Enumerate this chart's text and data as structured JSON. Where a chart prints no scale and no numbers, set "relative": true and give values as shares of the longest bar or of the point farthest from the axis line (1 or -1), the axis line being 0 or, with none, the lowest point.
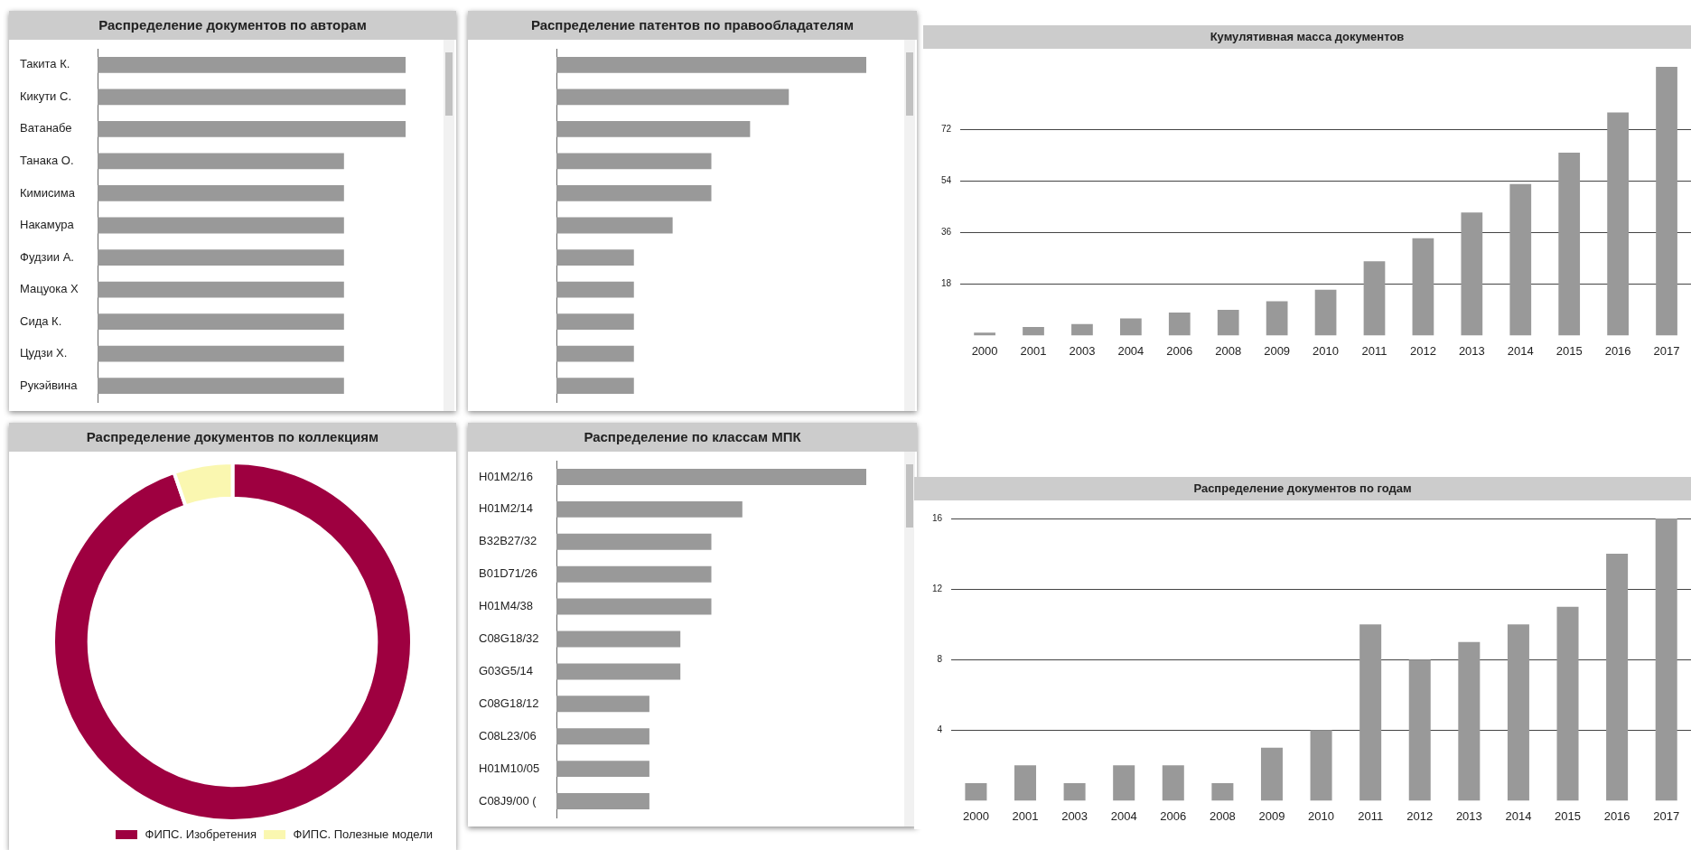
{
  "chart_data": [
    {
      "type": "bar",
      "title": "Распределение документов по авторам",
      "orientation": "horizontal",
      "relative": true,
      "color": "#999999",
      "categories": [
        "Такита К.",
        "Кикути С.",
        "Ватанабе",
        "Танака О.",
        "Кимисима",
        "Накамура",
        "Фудзии А.",
        "Мацуока Х",
        "Сида К.",
        "Цудзи Х.",
        "Рукэйвина"
      ],
      "values": [
        1,
        1,
        1,
        0.8,
        0.8,
        0.8,
        0.8,
        0.8,
        0.8,
        0.8,
        0.8
      ]
    },
    {
      "type": "bar",
      "title": "Распределение патентов по правообладателям",
      "orientation": "horizontal",
      "relative": true,
      "color": "#999999",
      "categories": [
        null,
        null,
        null,
        null,
        null,
        null,
        null,
        null,
        null,
        null,
        null
      ],
      "values": [
        1,
        0.75,
        0.625,
        0.5,
        0.5,
        0.375,
        0.25,
        0.25,
        0.25,
        0.25,
        0.25
      ]
    },
    {
      "type": "bar",
      "title": "Кумулятивная масса документов",
      "color": "#999999",
      "categories": [
        "2000",
        "2001",
        "2003",
        "2004",
        "2006",
        "2008",
        "2009",
        "2010",
        "2011",
        "2012",
        "2013",
        "2014",
        "2015",
        "2016",
        "2017"
      ],
      "values": [
        1,
        3,
        4,
        6,
        8,
        9,
        12,
        16,
        26,
        34,
        43,
        53,
        64,
        78,
        94
      ],
      "ylim": [
        0,
        94
      ],
      "yticks": [
        18,
        36,
        54,
        72
      ],
      "grid": "y"
    },
    {
      "type": "donut",
      "title": "Распределение документов по коллекциям",
      "categories": [
        "ФИПС. Изобретения",
        "ФИПС. Полезные модели"
      ],
      "values": [
        94.7,
        5.3
      ],
      "colors": [
        "#9e0040",
        "#faf7b0"
      ],
      "legend": "bottom right"
    },
    {
      "type": "bar",
      "title": "Распределение по классам МПК",
      "orientation": "horizontal",
      "relative": true,
      "color": "#999999",
      "categories": [
        "H01M2/16",
        "H01M2/14",
        "B32B27/32",
        "B01D71/26",
        "H01M4/38",
        "C08G18/32",
        "G03G5/14",
        "C08G18/12",
        "C08L23/06",
        "H01M10/05",
        "C08J9/00 ("
      ],
      "values": [
        1,
        0.6,
        0.5,
        0.5,
        0.5,
        0.4,
        0.4,
        0.3,
        0.3,
        0.3,
        0.3
      ]
    },
    {
      "type": "bar",
      "title": "Распределение документов по годам",
      "color": "#999999",
      "categories": [
        "2000",
        "2001",
        "2003",
        "2004",
        "2006",
        "2008",
        "2009",
        "2010",
        "2011",
        "2012",
        "2013",
        "2014",
        "2015",
        "2016",
        "2017"
      ],
      "values": [
        1,
        2,
        1,
        2,
        2,
        1,
        3,
        4,
        10,
        8,
        9,
        10,
        11,
        14,
        16
      ],
      "ylim": [
        0,
        16
      ],
      "yticks": [
        4,
        8,
        12,
        16
      ],
      "grid": "y"
    }
  ]
}
